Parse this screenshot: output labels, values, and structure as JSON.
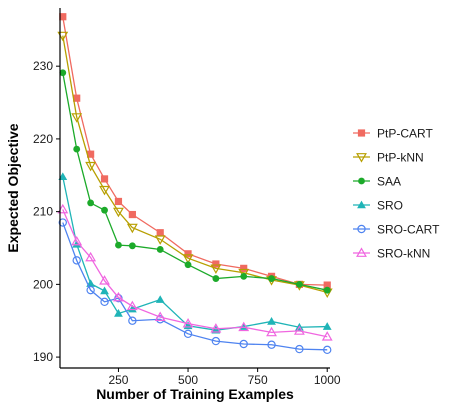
{
  "chart_data": {
    "type": "line",
    "title": "",
    "xlabel": "Number of Training Examples",
    "ylabel": "Expected Objective",
    "xlim": [
      40,
      1010
    ],
    "ylim": [
      188.5,
      238
    ],
    "xticks": [
      250,
      500,
      750,
      1000
    ],
    "yticks": [
      190,
      200,
      210,
      220,
      230
    ],
    "grid": false,
    "legend_position": "right",
    "series": [
      {
        "name": "PtP-CART",
        "color": "#F06A60",
        "marker": "square",
        "x": [
          50,
          100,
          150,
          200,
          250,
          300,
          400,
          500,
          600,
          700,
          800,
          900,
          1000
        ],
        "y": [
          236.8,
          225.6,
          217.9,
          214.5,
          211.4,
          209.6,
          207.1,
          204.2,
          202.8,
          202.2,
          201.1,
          200.0,
          199.9
        ]
      },
      {
        "name": "PtP-kNN",
        "color": "#B79F00",
        "marker": "triangle-down-open",
        "x": [
          50,
          100,
          150,
          200,
          250,
          300,
          400,
          500,
          600,
          700,
          800,
          900,
          1000
        ],
        "y": [
          234.2,
          223.0,
          216.3,
          213.0,
          210.0,
          207.8,
          206.2,
          203.6,
          202.2,
          201.6,
          200.6,
          199.9,
          198.9
        ]
      },
      {
        "name": "SAA",
        "color": "#1CAA2A",
        "marker": "circle",
        "x": [
          50,
          100,
          150,
          200,
          250,
          300,
          400,
          500,
          600,
          700,
          800,
          900,
          1000
        ],
        "y": [
          229.1,
          218.6,
          211.2,
          210.2,
          205.4,
          205.3,
          204.8,
          202.7,
          200.8,
          201.1,
          200.8,
          200.0,
          199.2
        ]
      },
      {
        "name": "SRO",
        "color": "#1FB4B7",
        "marker": "triangle",
        "x": [
          50,
          100,
          150,
          200,
          250,
          300,
          400,
          500,
          600,
          700,
          800,
          900,
          1000
        ],
        "y": [
          214.8,
          205.5,
          200.1,
          199.1,
          196.0,
          196.6,
          197.9,
          194.3,
          193.7,
          194.2,
          194.9,
          194.1,
          194.2
        ]
      },
      {
        "name": "SRO-CART",
        "color": "#4E83F0",
        "marker": "circle-open",
        "x": [
          50,
          100,
          150,
          200,
          250,
          300,
          400,
          500,
          600,
          700,
          800,
          900,
          1000
        ],
        "y": [
          208.5,
          203.3,
          199.2,
          197.6,
          198.1,
          195.0,
          195.2,
          193.2,
          192.2,
          191.8,
          191.7,
          191.1,
          191.0
        ]
      },
      {
        "name": "SRO-kNN",
        "color": "#F066E0",
        "marker": "triangle-open",
        "x": [
          50,
          100,
          150,
          200,
          250,
          300,
          400,
          500,
          600,
          700,
          800,
          900,
          1000
        ],
        "y": [
          210.3,
          205.9,
          203.7,
          200.5,
          198.2,
          197.0,
          195.5,
          194.6,
          193.9,
          194.1,
          193.4,
          193.6,
          192.8
        ]
      }
    ]
  }
}
